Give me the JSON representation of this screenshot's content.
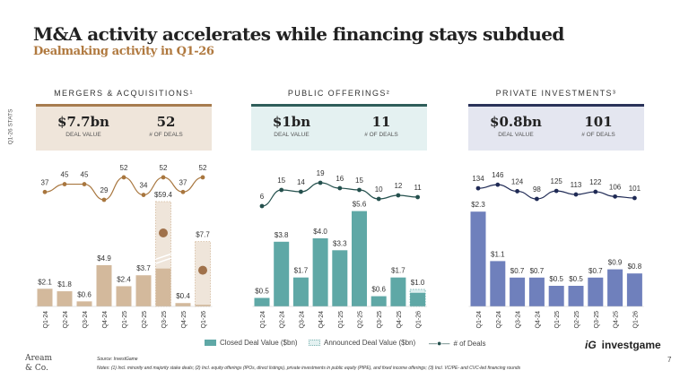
{
  "header": {
    "title": "M&A activity accelerates while financing stays subdued",
    "subtitle": "Dealmaking activity in Q1-26"
  },
  "stats_label": "Q1-26 STATS",
  "panels": [
    {
      "title": "MERGERS & ACQUISITIONS¹",
      "deal_value": "$7.7bn",
      "deal_value_label": "DEAL VALUE",
      "deals": "52",
      "deals_label": "# OF DEALS"
    },
    {
      "title": "PUBLIC OFFERINGS²",
      "deal_value": "$1bn",
      "deal_value_label": "DEAL VALUE",
      "deals": "11",
      "deals_label": "# OF DEALS"
    },
    {
      "title": "PRIVATE INVESTMENTS³",
      "deal_value": "$0.8bn",
      "deal_value_label": "DEAL VALUE",
      "deals": "101",
      "deals_label": "# OF DEALS"
    }
  ],
  "chart_data": [
    {
      "type": "bar+line",
      "title": "MERGERS & ACQUISITIONS¹",
      "categories": [
        "Q1-24",
        "Q2-24",
        "Q3-24",
        "Q4-24",
        "Q1-25",
        "Q2-25",
        "Q3-25",
        "Q4-25",
        "Q1-26"
      ],
      "closed_value": [
        2.1,
        1.8,
        0.6,
        4.9,
        2.4,
        3.7,
        4.5,
        0.4,
        0.2
      ],
      "announced_total": [
        null,
        null,
        null,
        null,
        null,
        null,
        59.4,
        null,
        7.7
      ],
      "value_labels": [
        "$2.1",
        "$1.8",
        "$0.6",
        "$4.9",
        "$2.4",
        "$3.7",
        "$59.4",
        "$0.4",
        "$7.7"
      ],
      "deals": [
        37,
        45,
        45,
        29,
        52,
        34,
        52,
        37,
        52
      ],
      "axis_break": "Q3-25",
      "colors": {
        "bar": "#d3b99c",
        "line": "#a8763e",
        "announced": "#efe5da"
      }
    },
    {
      "type": "bar+line",
      "title": "PUBLIC OFFERINGS²",
      "categories": [
        "Q1-24",
        "Q2-24",
        "Q3-24",
        "Q4-24",
        "Q1-25",
        "Q2-25",
        "Q3-25",
        "Q4-25",
        "Q1-26"
      ],
      "closed_value": [
        0.5,
        3.8,
        1.7,
        4.0,
        3.3,
        5.6,
        0.6,
        1.7,
        0.8
      ],
      "announced_total": [
        null,
        null,
        null,
        null,
        null,
        null,
        null,
        null,
        1.0
      ],
      "value_labels": [
        "$0.5",
        "$3.8",
        "$1.7",
        "$4.0",
        "$3.3",
        "$5.6",
        "$0.6",
        "$1.7",
        "$1.0"
      ],
      "deals": [
        6,
        15,
        14,
        19,
        16,
        15,
        10,
        12,
        11
      ],
      "colors": {
        "bar": "#5fa8a6",
        "line": "#24504d",
        "announced": "#dcefef"
      }
    },
    {
      "type": "bar+line",
      "title": "PRIVATE INVESTMENTS³",
      "categories": [
        "Q1-24",
        "Q2-24",
        "Q3-24",
        "Q4-24",
        "Q1-25",
        "Q2-25",
        "Q3-25",
        "Q4-25",
        "Q1-26"
      ],
      "closed_value": [
        2.3,
        1.1,
        0.7,
        0.7,
        0.5,
        0.5,
        0.7,
        0.9,
        0.8
      ],
      "announced_total": [
        null,
        null,
        null,
        null,
        null,
        null,
        null,
        null,
        null
      ],
      "value_labels": [
        "$2.3",
        "$1.1",
        "$0.7",
        "$0.7",
        "$0.5",
        "$0.5",
        "$0.7",
        "$0.9",
        "$0.8"
      ],
      "deals": [
        134,
        146,
        124,
        98,
        125,
        113,
        122,
        106,
        101
      ],
      "colors": {
        "bar": "#6f80bc",
        "line": "#1f2a55",
        "announced": "#e4e6f0"
      }
    }
  ],
  "legend": {
    "closed": "Closed Deal Value ($bn)",
    "announced": "Announced Deal Value ($bn)",
    "deals": "# of Deals"
  },
  "footer": {
    "source": "Source: InvestGame",
    "notes": "Notes: (1) Incl. minority and majority stake deals; (2) Incl. equity offerings (IPOs, direct listings), private investments in public equity (PIPE), and fixed income offerings; (3) Incl. VC/PE- and CVC-led financing rounds",
    "page": "7",
    "logo_aream": "Aream & Co.",
    "logo_investgame": "investgame"
  }
}
